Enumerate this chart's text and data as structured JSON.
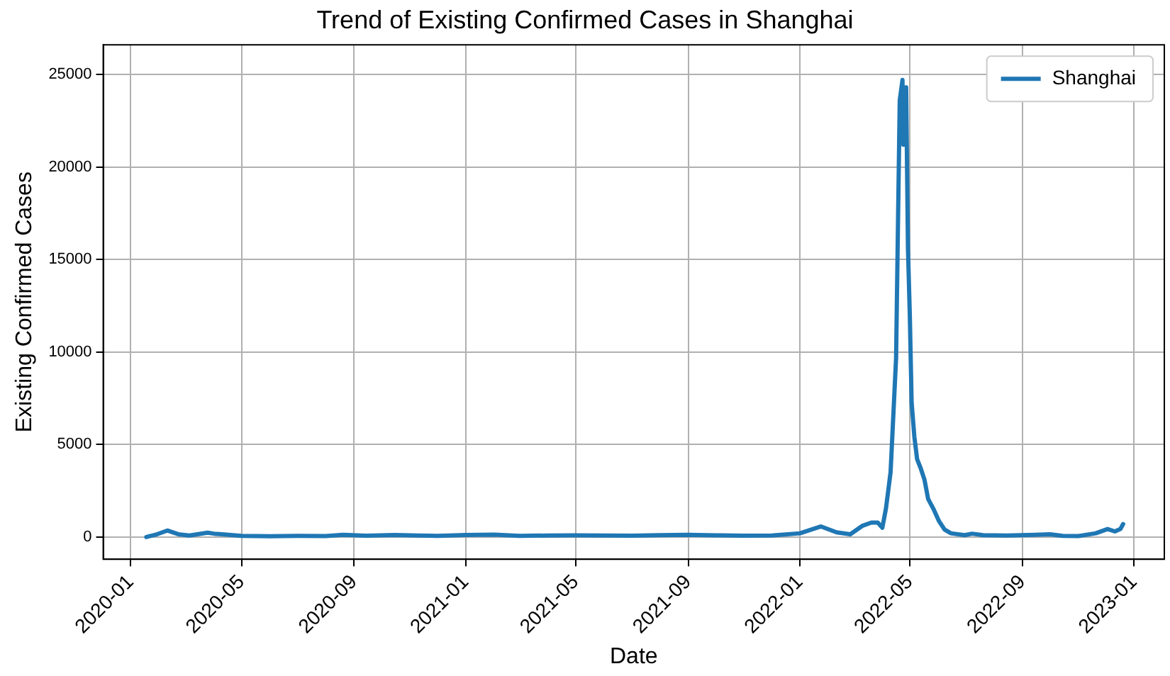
{
  "chart_data": {
    "type": "line",
    "title": "Trend of Existing Confirmed Cases in Shanghai",
    "xlabel": "Date",
    "ylabel": "Existing Confirmed Cases",
    "x": [
      "2020-01-18",
      "2020-01-28",
      "2020-02-10",
      "2020-02-22",
      "2020-03-05",
      "2020-03-25",
      "2020-04-01",
      "2020-04-10",
      "2020-05-01",
      "2020-06-01",
      "2020-07-01",
      "2020-08-01",
      "2020-08-20",
      "2020-09-15",
      "2020-10-15",
      "2020-11-10",
      "2020-12-01",
      "2021-01-01",
      "2021-02-01",
      "2021-03-01",
      "2021-04-01",
      "2021-05-01",
      "2021-06-01",
      "2021-07-01",
      "2021-08-01",
      "2021-09-01",
      "2021-10-01",
      "2021-11-01",
      "2021-12-01",
      "2022-01-01",
      "2022-01-24",
      "2022-02-10",
      "2022-02-25",
      "2022-03-10",
      "2022-03-20",
      "2022-03-27",
      "2022-04-01",
      "2022-04-05",
      "2022-04-10",
      "2022-04-16",
      "2022-04-20",
      "2022-04-23",
      "2022-04-24",
      "2022-04-27",
      "2022-04-29",
      "2022-05-01",
      "2022-05-03",
      "2022-05-06",
      "2022-05-09",
      "2022-05-13",
      "2022-05-17",
      "2022-05-21",
      "2022-05-27",
      "2022-06-02",
      "2022-06-08",
      "2022-06-15",
      "2022-06-30",
      "2022-07-08",
      "2022-07-20",
      "2022-08-15",
      "2022-09-15",
      "2022-10-01",
      "2022-10-15",
      "2022-11-01",
      "2022-11-20",
      "2022-12-03",
      "2022-12-11",
      "2022-12-17",
      "2022-12-20"
    ],
    "series": [
      {
        "name": "Shanghai",
        "color": "#1f77b4",
        "values": [
          0,
          120,
          350,
          150,
          80,
          230,
          180,
          150,
          60,
          40,
          60,
          50,
          120,
          70,
          110,
          80,
          60,
          110,
          130,
          60,
          80,
          90,
          80,
          70,
          100,
          120,
          90,
          70,
          80,
          200,
          570,
          250,
          150,
          600,
          780,
          780,
          500,
          1560,
          3500,
          9650,
          23600,
          24700,
          21200,
          24300,
          15550,
          12000,
          7250,
          5400,
          4200,
          3700,
          3100,
          2060,
          1500,
          850,
          400,
          200,
          100,
          180,
          100,
          80,
          120,
          150,
          60,
          50,
          200,
          430,
          300,
          430,
          700
        ]
      }
    ],
    "xlim": [
      "2019-12-02",
      "2023-02-03"
    ],
    "ylim": [
      -1200,
      26600
    ],
    "xticks": [
      "2020-01",
      "2020-05",
      "2020-09",
      "2021-01",
      "2021-05",
      "2021-09",
      "2022-01",
      "2022-05",
      "2022-09",
      "2023-01"
    ],
    "yticks": [
      0,
      5000,
      10000,
      15000,
      20000,
      25000
    ],
    "grid": true,
    "legend": "top right",
    "marker": "none",
    "line_style": "solid"
  }
}
